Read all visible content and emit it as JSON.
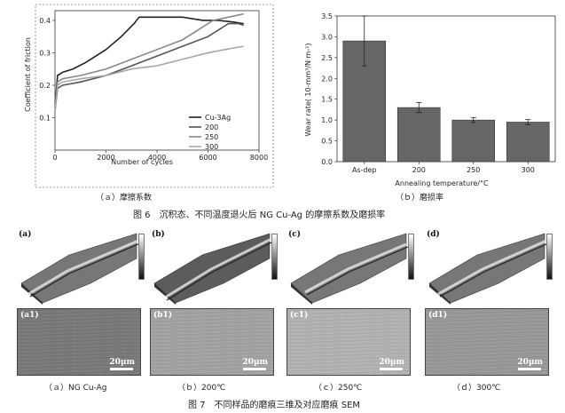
{
  "figure6": {
    "caption": "图 6　沉积态、不同温度退火后 NG Cu-Ag 的摩擦系数及磨损率",
    "sub_a": "（ａ）摩擦系数",
    "sub_b": "（ｂ）磨损率"
  },
  "figure7": {
    "caption": "图 7　不同样品的磨痕三维及对应磨痕 SEM",
    "panels": [
      {
        "tag": "(a)",
        "sem_tag": "(a1)",
        "caption": "（ａ）NG Cu-Ag"
      },
      {
        "tag": "(b)",
        "sem_tag": "(b1)",
        "caption": "（ｂ）200℃"
      },
      {
        "tag": "(c)",
        "sem_tag": "(c1)",
        "caption": "（ｃ）250℃"
      },
      {
        "tag": "(d)",
        "sem_tag": "(d1)",
        "caption": "（ｄ）300℃"
      }
    ],
    "scale_label": "20μm"
  },
  "colors": {
    "line_cu3ag": "#222222",
    "line_200": "#555555",
    "line_250": "#888888",
    "line_300": "#a8a8a8",
    "bar_fill": "#666666"
  },
  "chart_data": [
    {
      "type": "line",
      "title": "",
      "xlabel": "Number of cycles",
      "ylabel": "Coefficient of friction",
      "xlim": [
        0,
        8000
      ],
      "ylim": [
        0,
        0.43
      ],
      "xticks": [
        0,
        2000,
        4000,
        6000,
        8000
      ],
      "yticks": [
        0.1,
        0.2,
        0.3,
        0.4
      ],
      "legend_position": "bottom-right",
      "series": [
        {
          "name": "Cu-3Ag",
          "x": [
            0,
            100,
            300,
            700,
            1200,
            2000,
            2600,
            3100,
            3300,
            3700,
            4200,
            5000,
            5800,
            6400,
            7000,
            7400
          ],
          "y": [
            0.13,
            0.23,
            0.24,
            0.25,
            0.27,
            0.31,
            0.35,
            0.39,
            0.41,
            0.41,
            0.41,
            0.41,
            0.4,
            0.4,
            0.395,
            0.39
          ]
        },
        {
          "name": "200",
          "x": [
            0,
            100,
            300,
            1000,
            2000,
            3000,
            4000,
            5000,
            6000,
            6400,
            6800,
            7200,
            7400
          ],
          "y": [
            0.12,
            0.19,
            0.2,
            0.21,
            0.23,
            0.26,
            0.29,
            0.32,
            0.35,
            0.37,
            0.39,
            0.39,
            0.385
          ]
        },
        {
          "name": "250",
          "x": [
            0,
            100,
            300,
            1000,
            2000,
            3000,
            4000,
            5000,
            5600,
            6200,
            6800,
            7400
          ],
          "y": [
            0.12,
            0.21,
            0.22,
            0.23,
            0.25,
            0.28,
            0.31,
            0.34,
            0.37,
            0.4,
            0.41,
            0.42
          ]
        },
        {
          "name": "300",
          "x": [
            0,
            100,
            300,
            1000,
            2000,
            3000,
            4000,
            5000,
            6000,
            7000,
            7400
          ],
          "y": [
            0.12,
            0.2,
            0.21,
            0.22,
            0.23,
            0.25,
            0.26,
            0.28,
            0.3,
            0.315,
            0.32
          ]
        }
      ]
    },
    {
      "type": "bar",
      "title": "",
      "xlabel": "Annealing temperature/°C",
      "ylabel": "Wear rate( 10-mm³/N·m-¹)",
      "ylim": [
        0,
        3.5
      ],
      "yticks": [
        0.0,
        0.5,
        1.0,
        1.5,
        2.0,
        2.5,
        3.0,
        3.5
      ],
      "categories": [
        "As-dep",
        "200",
        "250",
        "300"
      ],
      "values": [
        2.9,
        1.3,
        1.0,
        0.95
      ],
      "errors": [
        0.6,
        0.12,
        0.06,
        0.06
      ]
    }
  ]
}
